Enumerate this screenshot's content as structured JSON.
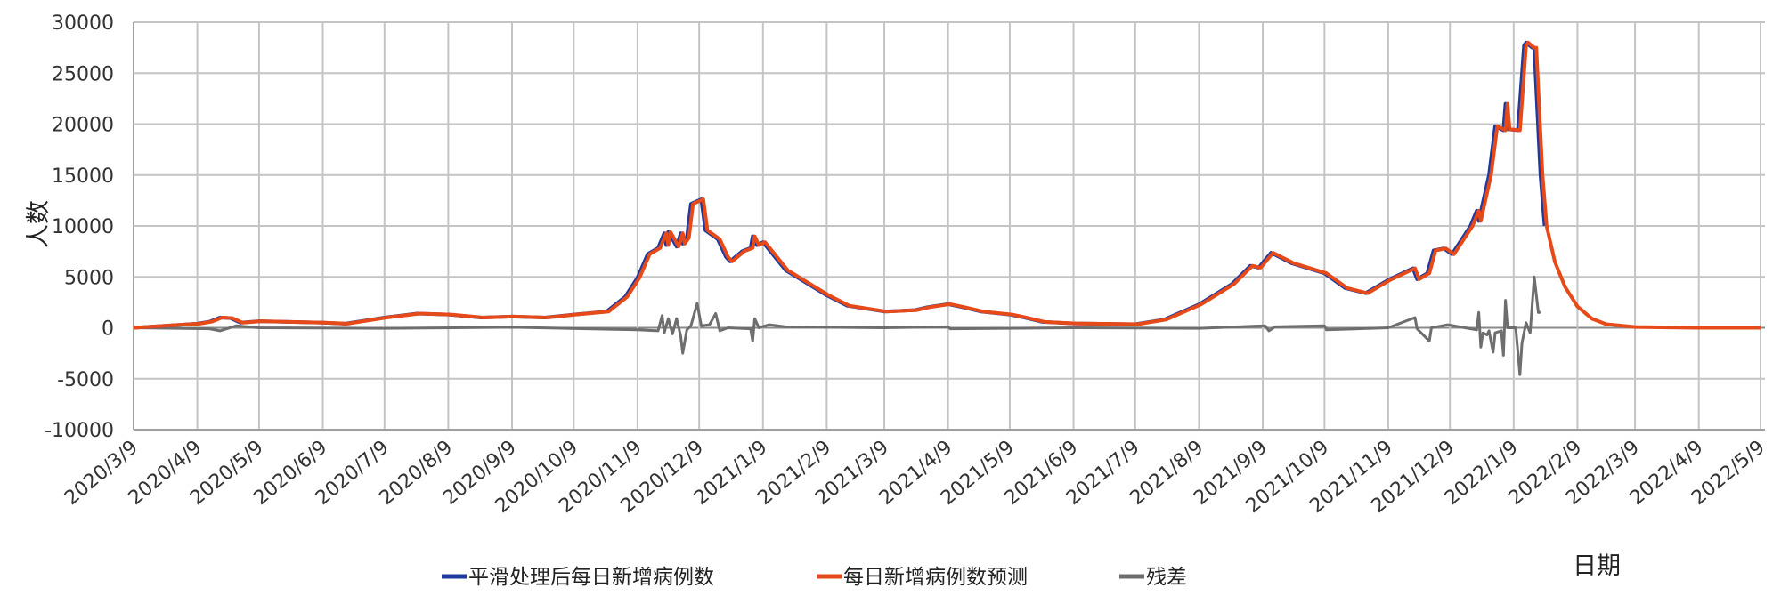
{
  "chart_data": {
    "type": "line",
    "title": "",
    "xlabel": "日期",
    "ylabel": "人数",
    "ylim": [
      -10000,
      30000
    ],
    "yticks": [
      30000,
      25000,
      20000,
      15000,
      10000,
      5000,
      0,
      -5000,
      -10000
    ],
    "ytick_labels": [
      "30000",
      "25000",
      "20000",
      "15000",
      "10000",
      "5000",
      "0",
      "-5000",
      "-10000"
    ],
    "xlim": [
      "2020-03-09",
      "2022-05-09"
    ],
    "xtick_labels": [
      "2020/3/9",
      "2020/4/9",
      "2020/5/9",
      "2020/6/9",
      "2020/7/9",
      "2020/8/9",
      "2020/9/9",
      "2020/10/9",
      "2020/11/9",
      "2020/12/9",
      "2021/1/9",
      "2021/2/9",
      "2021/3/9",
      "2021/4/9",
      "2021/5/9",
      "2021/6/9",
      "2021/7/9",
      "2021/8/9",
      "2021/9/9",
      "2021/10/9",
      "2021/11/9",
      "2021/12/9",
      "2022/1/9",
      "2022/2/9",
      "2022/3/9",
      "2022/4/9",
      "2022/5/9"
    ],
    "grid": true,
    "legend_position": "bottom",
    "series": [
      {
        "name": "平滑处理后每日新增病例数",
        "color": "#1f3a9e",
        "points": [
          [
            "2020-03-09",
            0
          ],
          [
            "2020-04-01",
            300
          ],
          [
            "2020-04-09",
            400
          ],
          [
            "2020-04-15",
            600
          ],
          [
            "2020-04-20",
            1000
          ],
          [
            "2020-04-25",
            950
          ],
          [
            "2020-04-30",
            500
          ],
          [
            "2020-05-09",
            650
          ],
          [
            "2020-06-09",
            500
          ],
          [
            "2020-06-20",
            400
          ],
          [
            "2020-07-09",
            1000
          ],
          [
            "2020-07-25",
            1400
          ],
          [
            "2020-08-09",
            1300
          ],
          [
            "2020-08-25",
            1000
          ],
          [
            "2020-09-09",
            1100
          ],
          [
            "2020-09-25",
            1000
          ],
          [
            "2020-10-09",
            1300
          ],
          [
            "2020-10-25",
            1600
          ],
          [
            "2020-11-03",
            3040
          ],
          [
            "2020-11-09",
            4930
          ],
          [
            "2020-11-14",
            7250
          ],
          [
            "2020-11-19",
            7830
          ],
          [
            "2020-11-22",
            9280
          ],
          [
            "2020-11-23",
            8120
          ],
          [
            "2020-11-24",
            9420
          ],
          [
            "2020-11-28",
            7970
          ],
          [
            "2020-11-30",
            9280
          ],
          [
            "2020-12-01",
            8260
          ],
          [
            "2020-12-03",
            8840
          ],
          [
            "2020-12-05",
            12170
          ],
          [
            "2020-12-10",
            12610
          ],
          [
            "2020-12-12",
            9570
          ],
          [
            "2020-12-18",
            8700
          ],
          [
            "2020-12-22",
            6960
          ],
          [
            "2020-12-24",
            6520
          ],
          [
            "2020-12-30",
            7540
          ],
          [
            "2021-01-03",
            7830
          ],
          [
            "2021-01-04",
            8990
          ],
          [
            "2021-01-06",
            8120
          ],
          [
            "2021-01-09",
            8410
          ],
          [
            "2021-01-20",
            5650
          ],
          [
            "2021-02-09",
            3190
          ],
          [
            "2021-02-19",
            2170
          ],
          [
            "2021-03-09",
            1600
          ],
          [
            "2021-03-24",
            1740
          ],
          [
            "2021-03-30",
            2030
          ],
          [
            "2021-04-09",
            2320
          ],
          [
            "2021-04-16",
            2030
          ],
          [
            "2021-04-25",
            1600
          ],
          [
            "2021-05-09",
            1300
          ],
          [
            "2021-05-16",
            1010
          ],
          [
            "2021-05-25",
            580
          ],
          [
            "2021-06-09",
            430
          ],
          [
            "2021-07-09",
            350
          ],
          [
            "2021-07-23",
            800
          ],
          [
            "2021-08-09",
            2300
          ],
          [
            "2021-08-25",
            4300
          ],
          [
            "2021-09-03",
            6100
          ],
          [
            "2021-09-07",
            5900
          ],
          [
            "2021-09-13",
            7370
          ],
          [
            "2021-09-23",
            6350
          ],
          [
            "2021-10-09",
            5350
          ],
          [
            "2021-10-19",
            3900
          ],
          [
            "2021-10-29",
            3400
          ],
          [
            "2021-11-09",
            4700
          ],
          [
            "2021-11-21",
            5840
          ],
          [
            "2021-11-23",
            4770
          ],
          [
            "2021-11-28",
            5350
          ],
          [
            "2021-12-01",
            7600
          ],
          [
            "2021-12-06",
            7800
          ],
          [
            "2021-12-10",
            7230
          ],
          [
            "2021-12-19",
            10000
          ],
          [
            "2021-12-22",
            11500
          ],
          [
            "2021-12-23",
            10500
          ],
          [
            "2021-12-28",
            15000
          ],
          [
            "2021-12-31",
            19800
          ],
          [
            "2022-01-04",
            19400
          ],
          [
            "2022-01-05",
            22000
          ],
          [
            "2022-01-06",
            19500
          ],
          [
            "2022-01-11",
            19400
          ],
          [
            "2022-01-14",
            27700
          ],
          [
            "2022-01-15",
            28000
          ],
          [
            "2022-01-18",
            27500
          ],
          [
            "2022-01-19",
            27500
          ],
          [
            "2022-01-22",
            15000
          ],
          [
            "2022-01-24",
            10000
          ]
        ]
      },
      {
        "name": "每日新增病例数预测",
        "color": "#e64a19",
        "points": [
          [
            "2020-03-09",
            0
          ],
          [
            "2020-04-01",
            300
          ],
          [
            "2020-04-10",
            400
          ],
          [
            "2020-04-16",
            600
          ],
          [
            "2020-04-21",
            1000
          ],
          [
            "2020-04-26",
            950
          ],
          [
            "2020-05-01",
            500
          ],
          [
            "2020-05-10",
            650
          ],
          [
            "2020-06-10",
            500
          ],
          [
            "2020-06-21",
            400
          ],
          [
            "2020-07-10",
            1000
          ],
          [
            "2020-07-26",
            1400
          ],
          [
            "2020-08-10",
            1300
          ],
          [
            "2020-08-26",
            1000
          ],
          [
            "2020-09-10",
            1100
          ],
          [
            "2020-09-26",
            1000
          ],
          [
            "2020-10-10",
            1300
          ],
          [
            "2020-10-26",
            1600
          ],
          [
            "2020-11-04",
            3040
          ],
          [
            "2020-11-10",
            4930
          ],
          [
            "2020-11-15",
            7250
          ],
          [
            "2020-11-20",
            7830
          ],
          [
            "2020-11-23",
            9280
          ],
          [
            "2020-11-24",
            8120
          ],
          [
            "2020-11-25",
            9420
          ],
          [
            "2020-11-29",
            7970
          ],
          [
            "2020-12-01",
            9280
          ],
          [
            "2020-12-02",
            8260
          ],
          [
            "2020-12-04",
            8840
          ],
          [
            "2020-12-06",
            12170
          ],
          [
            "2020-12-11",
            12610
          ],
          [
            "2020-12-13",
            9570
          ],
          [
            "2020-12-19",
            8700
          ],
          [
            "2020-12-23",
            6960
          ],
          [
            "2020-12-25",
            6520
          ],
          [
            "2020-12-31",
            7540
          ],
          [
            "2021-01-04",
            7830
          ],
          [
            "2021-01-05",
            8990
          ],
          [
            "2021-01-07",
            8120
          ],
          [
            "2021-01-10",
            8410
          ],
          [
            "2021-01-21",
            5650
          ],
          [
            "2021-02-10",
            3190
          ],
          [
            "2021-02-20",
            2170
          ],
          [
            "2021-03-10",
            1600
          ],
          [
            "2021-03-25",
            1740
          ],
          [
            "2021-03-31",
            2030
          ],
          [
            "2021-04-10",
            2320
          ],
          [
            "2021-04-17",
            2030
          ],
          [
            "2021-04-26",
            1600
          ],
          [
            "2021-05-10",
            1300
          ],
          [
            "2021-05-17",
            1010
          ],
          [
            "2021-05-26",
            580
          ],
          [
            "2021-06-10",
            430
          ],
          [
            "2021-07-10",
            350
          ],
          [
            "2021-07-24",
            800
          ],
          [
            "2021-08-10",
            2300
          ],
          [
            "2021-08-26",
            4300
          ],
          [
            "2021-09-04",
            6100
          ],
          [
            "2021-09-08",
            5900
          ],
          [
            "2021-09-14",
            7370
          ],
          [
            "2021-09-24",
            6350
          ],
          [
            "2021-10-10",
            5350
          ],
          [
            "2021-10-20",
            3900
          ],
          [
            "2021-10-30",
            3400
          ],
          [
            "2021-11-10",
            4700
          ],
          [
            "2021-11-22",
            5840
          ],
          [
            "2021-11-24",
            4770
          ],
          [
            "2021-11-29",
            5350
          ],
          [
            "2021-12-02",
            7600
          ],
          [
            "2021-12-07",
            7800
          ],
          [
            "2021-12-11",
            7230
          ],
          [
            "2021-12-20",
            10000
          ],
          [
            "2021-12-23",
            11500
          ],
          [
            "2021-12-24",
            10500
          ],
          [
            "2021-12-29",
            15000
          ],
          [
            "2022-01-01",
            19800
          ],
          [
            "2022-01-05",
            19400
          ],
          [
            "2022-01-06",
            22000
          ],
          [
            "2022-01-07",
            19500
          ],
          [
            "2022-01-12",
            19400
          ],
          [
            "2022-01-15",
            27700
          ],
          [
            "2022-01-16",
            28000
          ],
          [
            "2022-01-19",
            27500
          ],
          [
            "2022-01-20",
            27500
          ],
          [
            "2022-01-23",
            15000
          ],
          [
            "2022-01-25",
            10000
          ],
          [
            "2022-01-29",
            6500
          ],
          [
            "2022-02-03",
            4000
          ],
          [
            "2022-02-09",
            2100
          ],
          [
            "2022-02-16",
            900
          ],
          [
            "2022-02-23",
            350
          ],
          [
            "2022-03-09",
            80
          ],
          [
            "2022-04-09",
            0
          ],
          [
            "2022-05-09",
            0
          ]
        ]
      },
      {
        "name": "残差",
        "color": "#6e6e6e",
        "points": [
          [
            "2020-03-09",
            0
          ],
          [
            "2020-04-15",
            -100
          ],
          [
            "2020-04-20",
            -300
          ],
          [
            "2020-04-28",
            200
          ],
          [
            "2020-05-09",
            0
          ],
          [
            "2020-07-09",
            -50
          ],
          [
            "2020-09-09",
            50
          ],
          [
            "2020-11-09",
            -200
          ],
          [
            "2020-11-19",
            -300
          ],
          [
            "2020-11-21",
            1200
          ],
          [
            "2020-11-22",
            -500
          ],
          [
            "2020-11-24",
            900
          ],
          [
            "2020-11-26",
            -600
          ],
          [
            "2020-11-28",
            900
          ],
          [
            "2020-11-30",
            -800
          ],
          [
            "2020-12-01",
            -2500
          ],
          [
            "2020-12-03",
            -200
          ],
          [
            "2020-12-05",
            200
          ],
          [
            "2020-12-08",
            2400
          ],
          [
            "2020-12-10",
            200
          ],
          [
            "2020-12-14",
            300
          ],
          [
            "2020-12-17",
            1400
          ],
          [
            "2020-12-19",
            -300
          ],
          [
            "2020-12-23",
            0
          ],
          [
            "2021-01-03",
            -100
          ],
          [
            "2021-01-04",
            -1300
          ],
          [
            "2021-01-05",
            900
          ],
          [
            "2021-01-07",
            0
          ],
          [
            "2021-01-12",
            300
          ],
          [
            "2021-01-20",
            100
          ],
          [
            "2021-03-09",
            0
          ],
          [
            "2021-04-09",
            100
          ],
          [
            "2021-04-10",
            -100
          ],
          [
            "2021-06-09",
            0
          ],
          [
            "2021-08-09",
            -50
          ],
          [
            "2021-09-10",
            200
          ],
          [
            "2021-09-12",
            -300
          ],
          [
            "2021-09-15",
            100
          ],
          [
            "2021-10-09",
            200
          ],
          [
            "2021-10-10",
            -200
          ],
          [
            "2021-11-09",
            0
          ],
          [
            "2021-11-22",
            1000
          ],
          [
            "2021-11-23",
            -100
          ],
          [
            "2021-11-29",
            -1300
          ],
          [
            "2021-11-30",
            0
          ],
          [
            "2021-12-08",
            300
          ],
          [
            "2021-12-22",
            -200
          ],
          [
            "2021-12-23",
            1500
          ],
          [
            "2021-12-24",
            -1900
          ],
          [
            "2021-12-25",
            -500
          ],
          [
            "2021-12-27",
            -700
          ],
          [
            "2021-12-28",
            -300
          ],
          [
            "2021-12-30",
            -2400
          ],
          [
            "2021-12-31",
            -500
          ],
          [
            "2022-01-03",
            -300
          ],
          [
            "2022-01-04",
            -2700
          ],
          [
            "2022-01-05",
            2700
          ],
          [
            "2022-01-06",
            0
          ],
          [
            "2022-01-10",
            0
          ],
          [
            "2022-01-12",
            -4600
          ],
          [
            "2022-01-13",
            -1500
          ],
          [
            "2022-01-15",
            500
          ],
          [
            "2022-01-17",
            -500
          ],
          [
            "2022-01-19",
            5000
          ],
          [
            "2022-01-21",
            1500
          ],
          [
            "2022-01-22",
            1500
          ]
        ]
      }
    ]
  }
}
